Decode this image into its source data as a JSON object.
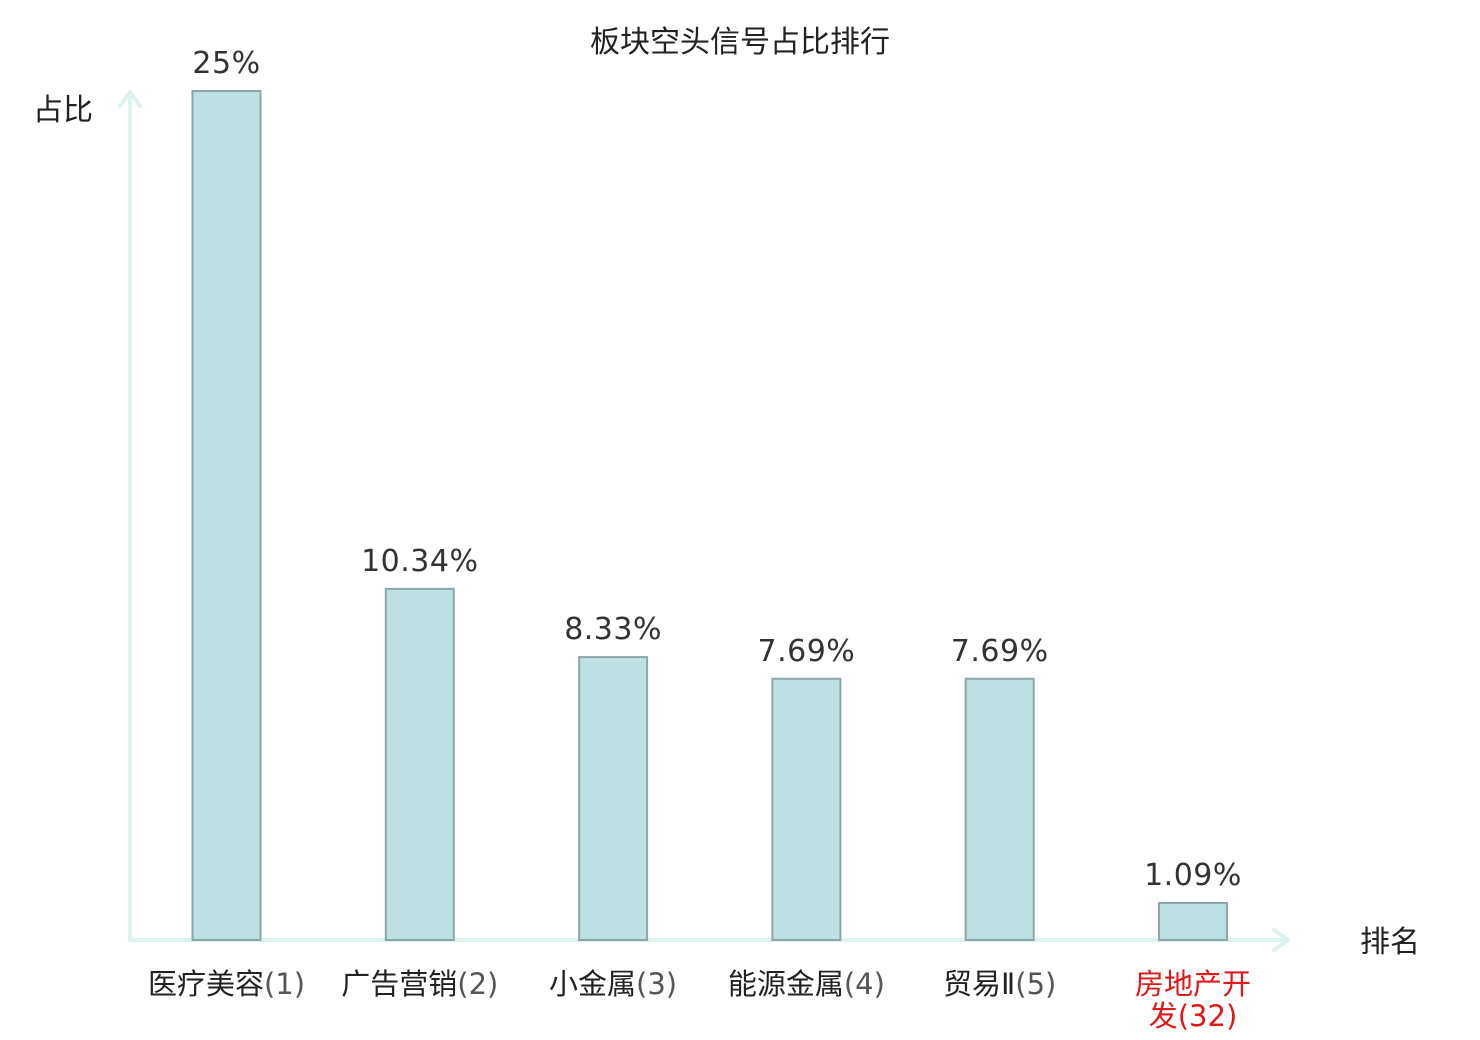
{
  "chart_data": {
    "type": "bar",
    "title": "板块空头信号占比排行",
    "ylabel": "占比",
    "xlabel": "排名",
    "ylim": [
      0,
      25
    ],
    "grid": false,
    "legend": "none",
    "bar_color": "#bde0e3",
    "bar_border_color": "#8aa8ac",
    "axis_color": "#def2ef",
    "highlight_color": "#e01818",
    "categories": [
      {
        "name": "医疗美容",
        "rank": "(1)",
        "highlight": false
      },
      {
        "name": "广告营销",
        "rank": "(2)",
        "highlight": false
      },
      {
        "name": "小金属",
        "rank": "(3)",
        "highlight": false
      },
      {
        "name": "能源金属",
        "rank": "(4)",
        "highlight": false
      },
      {
        "name": "贸易Ⅱ",
        "rank": "(5)",
        "highlight": false
      },
      {
        "name": "房地产开发",
        "rank": "(32)",
        "highlight": true
      }
    ],
    "values": [
      25,
      10.34,
      8.33,
      7.69,
      7.69,
      1.09
    ],
    "value_labels": [
      "25%",
      "10.34%",
      "8.33%",
      "7.69%",
      "7.69%",
      "1.09%"
    ]
  }
}
